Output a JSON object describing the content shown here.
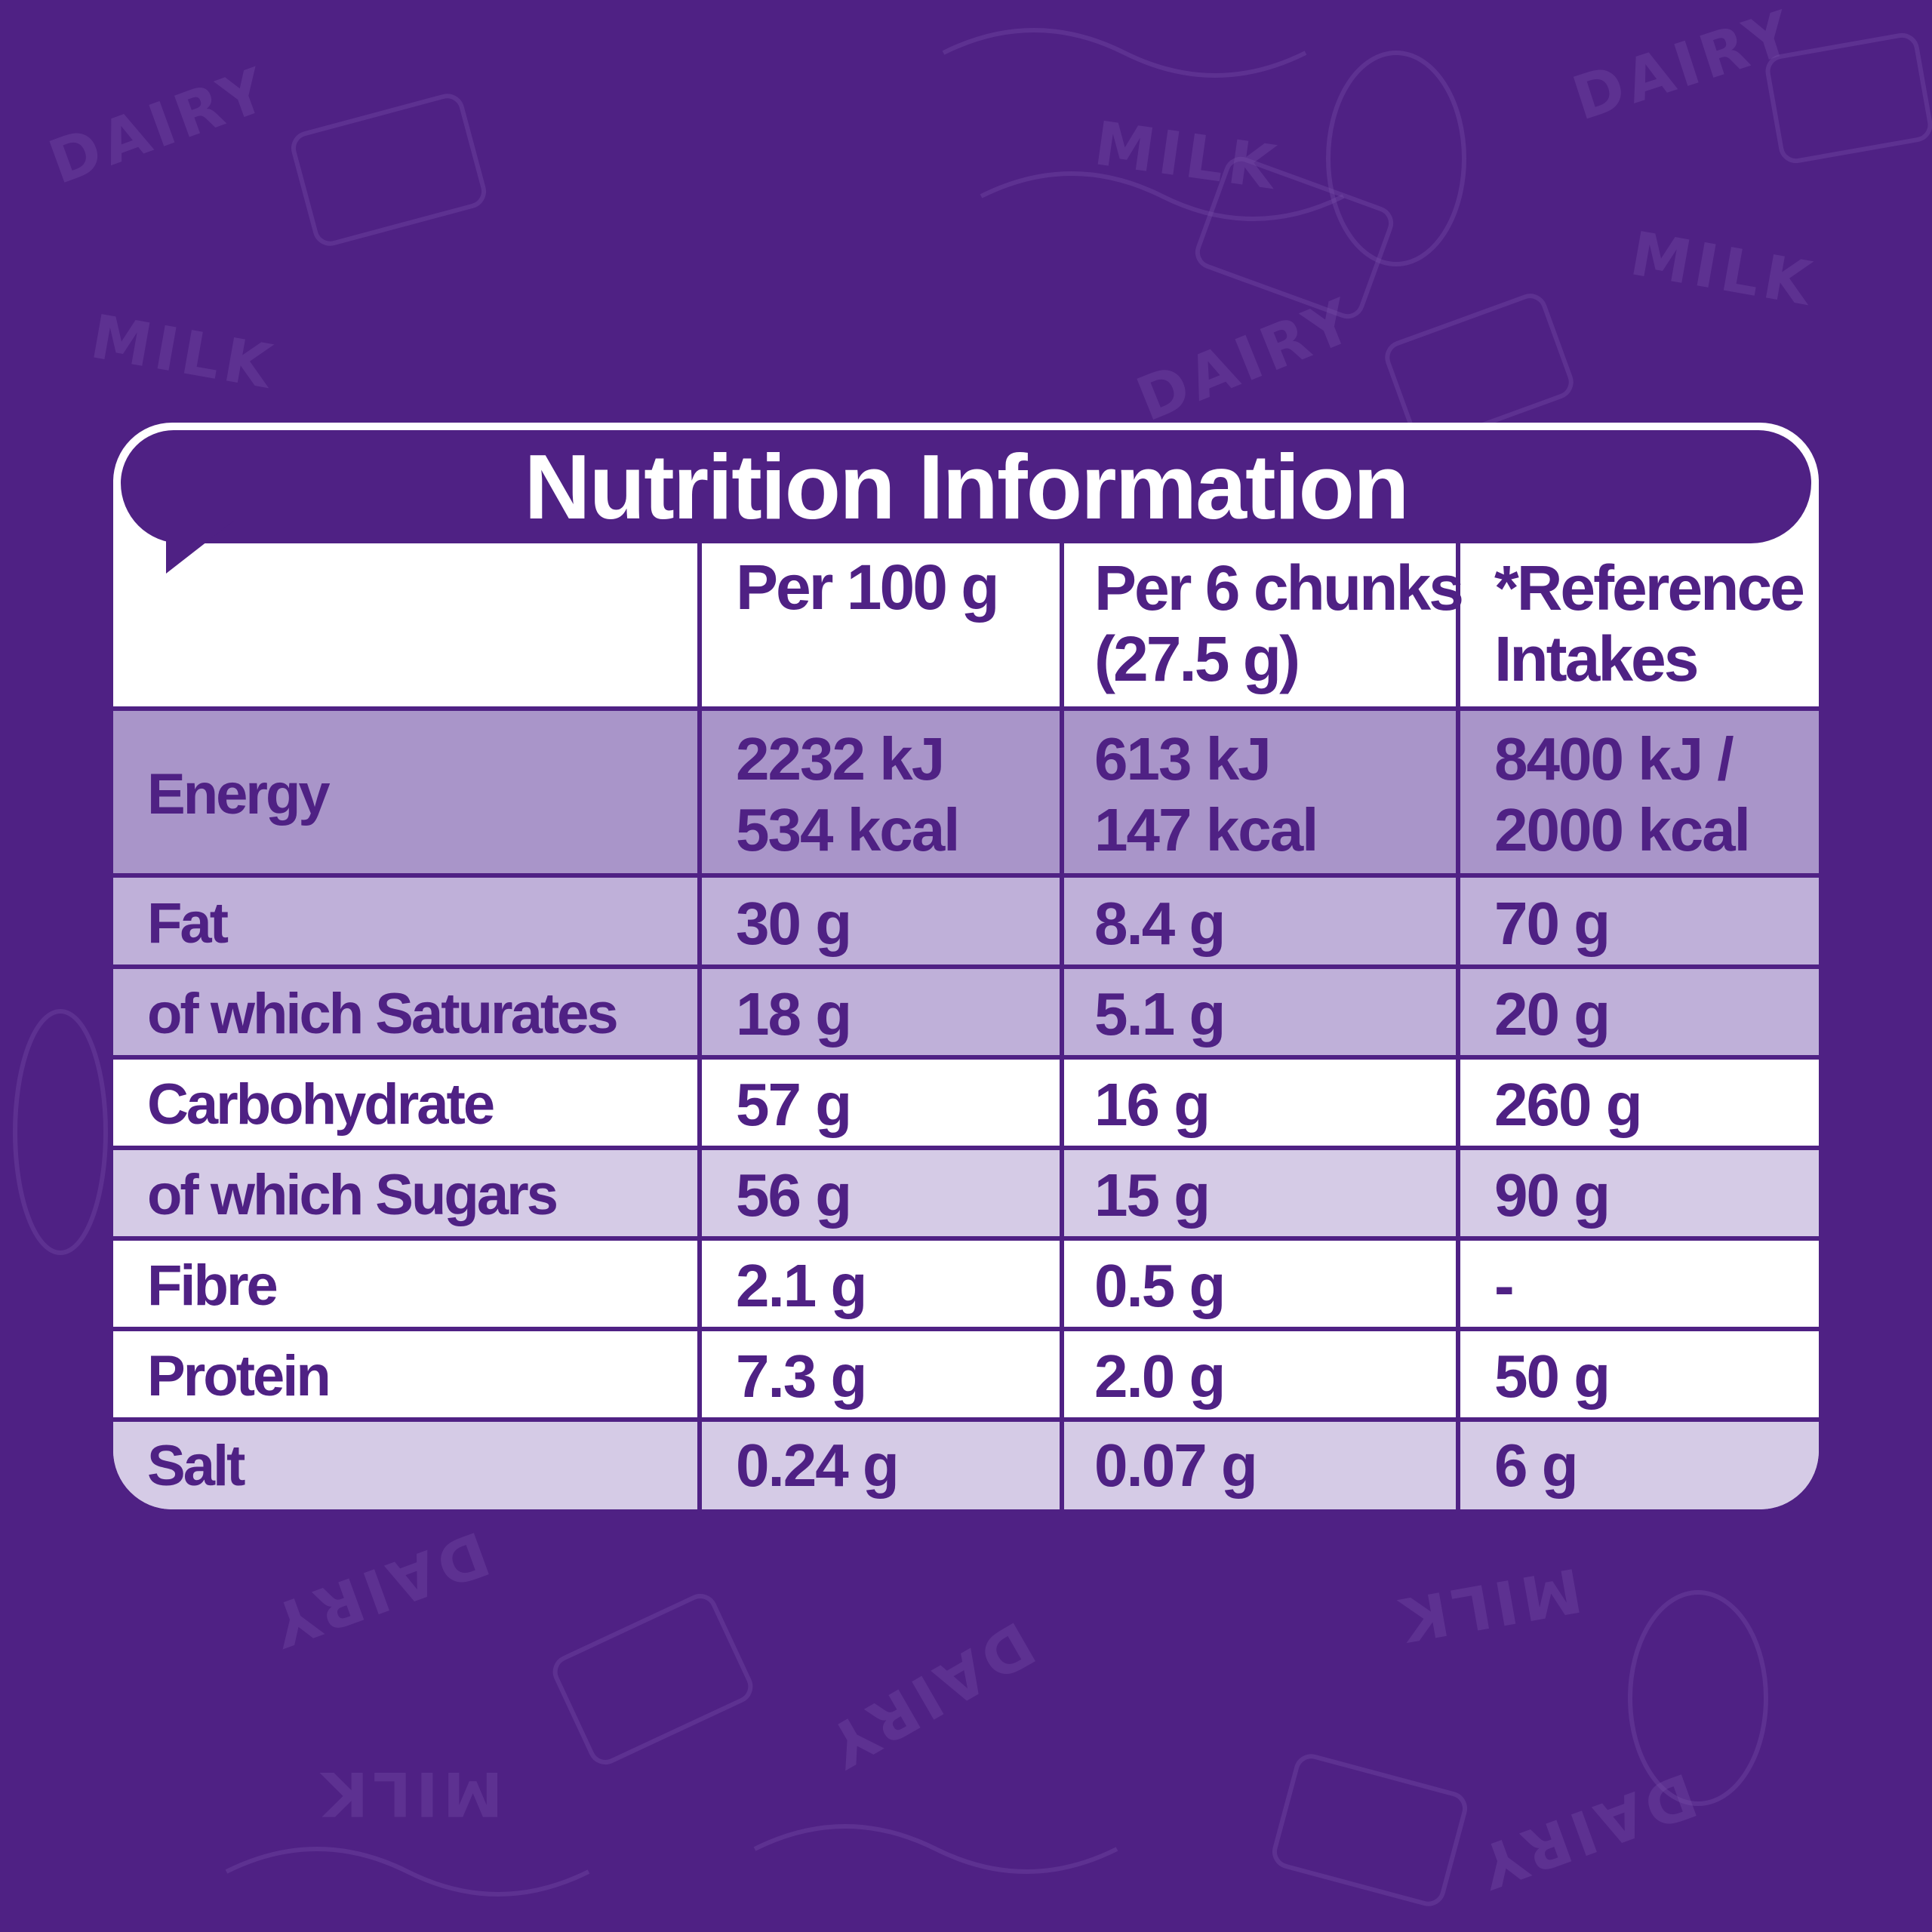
{
  "title": "Nutrition Information",
  "colors": {
    "background": "#4f2184",
    "panel": "#ffffff",
    "text": "#4f2184",
    "row_dark": "#a995c9",
    "row_mid": "#bfb0d9",
    "row_light": "#d5cbe6",
    "row_white": "#ffffff"
  },
  "header": {
    "col1": "Per 100 g",
    "col2_line1": "Per 6 chunks",
    "col2_line2": "(27.5 g)",
    "col3_line1": "*Reference",
    "col3_line2": "Intakes"
  },
  "energy": {
    "label": "Energy",
    "per100_kj": "2232 kJ",
    "per100_kcal": "534 kcal",
    "per6_kj": "613 kJ",
    "per6_kcal": "147 kcal",
    "ri_kj": "8400 kJ /",
    "ri_kcal": "2000 kcal"
  },
  "rows": [
    {
      "label": "Fat",
      "per100": "30 g",
      "per6": "8.4 g",
      "ri": "70 g"
    },
    {
      "label": "of which Saturates",
      "per100": "18 g",
      "per6": "5.1 g",
      "ri": "20 g"
    },
    {
      "label": "Carbohydrate",
      "per100": "57 g",
      "per6": "16 g",
      "ri": "260 g"
    },
    {
      "label": "of which Sugars",
      "per100": "56 g",
      "per6": "15 g",
      "ri": "90 g"
    },
    {
      "label": "Fibre",
      "per100": "2.1 g",
      "per6": "0.5 g",
      "ri": "-"
    },
    {
      "label": "Protein",
      "per100": "7.3 g",
      "per6": "2.0 g",
      "ri": "50 g"
    },
    {
      "label": "Salt",
      "per100": "0.24 g",
      "per6": "0.07 g",
      "ri": "6 g"
    }
  ]
}
